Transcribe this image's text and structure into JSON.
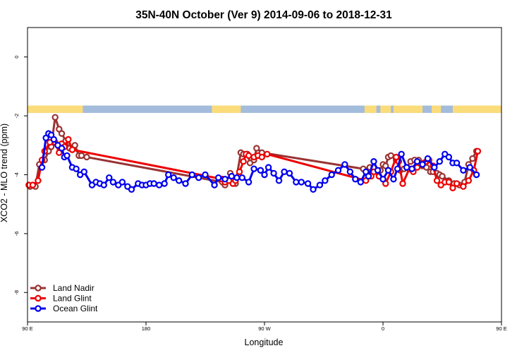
{
  "chart_data": {
    "type": "line",
    "title": "35N-40N October (Ver 9)   2014-09-06 to 2018-12-31",
    "xlabel": "Longitude",
    "ylabel": "XCO2 - MLO trend (ppm)",
    "xlim": [
      90,
      450
    ],
    "ylim": [
      -9,
      1
    ],
    "x_ticks": [
      {
        "value": 90,
        "label": "90 E"
      },
      {
        "value": 180,
        "label": "180"
      },
      {
        "value": 270,
        "label": "90 W"
      },
      {
        "value": 360,
        "label": "0"
      },
      {
        "value": 450,
        "label": "90 E"
      },
      {
        "value": 540,
        "label": "180"
      }
    ],
    "y_ticks": [
      {
        "value": 0,
        "label": "0"
      },
      {
        "value": -2,
        "label": "-2"
      },
      {
        "value": -4,
        "label": "-4"
      },
      {
        "value": -6,
        "label": "-6"
      },
      {
        "value": -8,
        "label": "-8"
      }
    ],
    "x_wrap": 360,
    "land_sea_band": {
      "ymin": -1.9,
      "ymax": -1.65,
      "ocean_color": "#a4bcdc",
      "land_color": "#fbdc7a",
      "land_ranges": [
        [
          90,
          132
        ],
        [
          230,
          252
        ],
        [
          346,
          355
        ],
        [
          358,
          366
        ],
        [
          368,
          390
        ],
        [
          397,
          404
        ],
        [
          413,
          450
        ]
      ]
    },
    "series": [
      {
        "name": "Land Nadir",
        "color": "#993333",
        "x": [
          92,
          96,
          99,
          103,
          106,
          108,
          111,
          114,
          116,
          119,
          122,
          124,
          126,
          129,
          131,
          135,
          238,
          240,
          242,
          244,
          246,
          248,
          252,
          254,
          257,
          259,
          262,
          264,
          268,
          345,
          350,
          353,
          358,
          360,
          362,
          364,
          366,
          370,
          373,
          376,
          378,
          381,
          384,
          387,
          390,
          393,
          396,
          398,
          401,
          403,
          405,
          410,
          414,
          418,
          422,
          425,
          428,
          431
        ],
        "y": [
          -4.4,
          -4.4,
          -3.65,
          -3.5,
          -3.2,
          -3.05,
          -2.05,
          -2.45,
          -2.6,
          -2.85,
          -3.1,
          -3.15,
          -3.0,
          -3.35,
          -3.35,
          -3.4,
          -4.25,
          -4.35,
          -4.2,
          -3.95,
          -4.2,
          -4.3,
          -3.25,
          -3.3,
          -3.3,
          -3.6,
          -3.5,
          -3.1,
          -3.25,
          -3.8,
          -3.75,
          -3.75,
          -3.85,
          -3.65,
          -3.7,
          -3.4,
          -3.35,
          -3.5,
          -3.85,
          -3.8,
          -3.75,
          -3.55,
          -3.5,
          -3.5,
          -3.7,
          -3.75,
          -3.9,
          -3.9,
          -3.95,
          -4.0,
          -4.05,
          -4.2,
          -4.3,
          -4.35,
          -4.25,
          -3.65,
          -3.45,
          -3.2
        ]
      },
      {
        "name": "Land Glint",
        "color": "#ee0000",
        "x": [
          91,
          94,
          98,
          101,
          103,
          107,
          111,
          114,
          116,
          118,
          121,
          124,
          238,
          240,
          243,
          246,
          248,
          251,
          254,
          256,
          258,
          262,
          265,
          268,
          272,
          347,
          351,
          353,
          357,
          362,
          366,
          370,
          372,
          375,
          380,
          383,
          386,
          391,
          393,
          395,
          398,
          401,
          404,
          407,
          410,
          413,
          416,
          421,
          425,
          429,
          432
        ],
        "y": [
          -4.35,
          -4.35,
          -4.2,
          -3.5,
          -3.2,
          -2.9,
          -2.9,
          -3.25,
          -2.95,
          -3.05,
          -2.8,
          -3.15,
          -4.15,
          -4.25,
          -4.2,
          -4.3,
          -4.2,
          -3.9,
          -3.55,
          -3.3,
          -3.35,
          -3.4,
          -3.35,
          -3.4,
          -3.3,
          -4.2,
          -4.05,
          -3.9,
          -4.05,
          -4.3,
          -3.9,
          -3.4,
          -3.55,
          -4.3,
          -3.8,
          -3.9,
          -3.75,
          -3.6,
          -3.55,
          -3.5,
          -3.7,
          -4.2,
          -4.35,
          -4.25,
          -4.25,
          -4.45,
          -4.3,
          -4.4,
          -4.2,
          -3.85,
          -3.2
        ]
      },
      {
        "name": "Ocean Glint",
        "color": "#0000ee",
        "x": [
          101,
          104,
          106,
          108,
          110,
          113,
          116,
          118,
          120,
          124,
          127,
          130,
          133,
          139,
          142,
          145,
          148,
          152,
          155,
          159,
          162,
          166,
          169,
          174,
          177,
          180,
          183,
          186,
          190,
          194,
          197,
          201,
          205,
          210,
          215,
          220,
          225,
          232,
          235,
          240,
          245,
          249,
          253,
          258,
          262,
          267,
          270,
          273,
          277,
          281,
          285,
          289,
          294,
          298,
          303,
          307,
          312,
          316,
          321,
          326,
          331,
          335,
          339,
          343,
          347,
          349,
          353,
          356,
          360,
          364,
          368,
          371,
          374,
          378,
          382,
          386,
          390,
          394,
          399,
          403,
          407,
          410,
          413,
          416,
          421,
          426,
          431
        ],
        "y": [
          -3.75,
          -2.75,
          -2.6,
          -2.65,
          -2.8,
          -3.0,
          -3.1,
          -3.4,
          -3.35,
          -3.75,
          -3.8,
          -4.0,
          -3.9,
          -4.35,
          -4.25,
          -4.3,
          -4.35,
          -4.1,
          -4.25,
          -4.35,
          -4.25,
          -4.4,
          -4.5,
          -4.3,
          -4.35,
          -4.35,
          -4.3,
          -4.3,
          -4.35,
          -4.3,
          -4.0,
          -4.1,
          -4.2,
          -4.3,
          -4.0,
          -4.1,
          -4.0,
          -4.35,
          -4.1,
          -4.15,
          -4.05,
          -4.1,
          -4.1,
          -4.25,
          -3.8,
          -3.85,
          -4.0,
          -3.75,
          -3.95,
          -4.2,
          -3.9,
          -3.95,
          -4.25,
          -4.25,
          -4.3,
          -4.5,
          -4.35,
          -4.2,
          -4.0,
          -3.85,
          -3.65,
          -3.9,
          -4.15,
          -4.25,
          -3.9,
          -4.05,
          -3.55,
          -3.85,
          -4.15,
          -3.85,
          -4.15,
          -3.8,
          -3.3,
          -3.75,
          -3.8,
          -3.55,
          -3.65,
          -3.45,
          -3.75,
          -3.55,
          -3.3,
          -3.4,
          -3.6,
          -3.6,
          -3.85,
          -3.75,
          -4.0
        ]
      }
    ],
    "legend": {
      "position": "bottom-left",
      "entries": [
        "Land Nadir",
        "Land Glint",
        "Ocean Glint"
      ]
    },
    "grid": false
  }
}
